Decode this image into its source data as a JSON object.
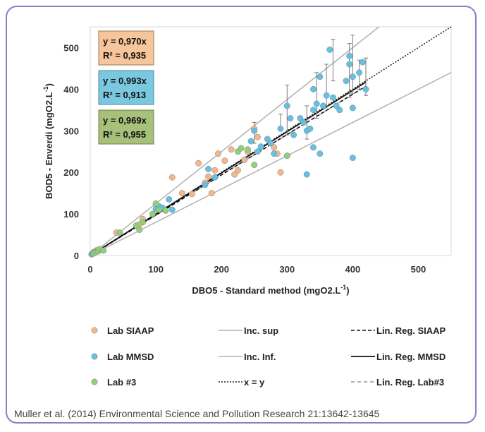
{
  "chart_data": {
    "type": "scatter",
    "xlabel": "DBO5 - Standard method (mgO2.L",
    "xlabel_sup": "-1",
    "xlabel_end": ")",
    "ylabel": "BOD5 - Enverdi (mgO2.L",
    "ylabel_sup": "-1",
    "ylabel_end": ")",
    "xlim": [
      0,
      550
    ],
    "ylim": [
      0,
      550
    ],
    "xticks": [
      "0",
      "100",
      "200",
      "300",
      "400",
      "500"
    ],
    "yticks": [
      "0",
      "100",
      "200",
      "300",
      "400",
      "500"
    ],
    "grid": false,
    "series": [
      {
        "name": "Lab SIAAP",
        "color": "#f3b78a",
        "points": [
          [
            3,
            4
          ],
          [
            6,
            8
          ],
          [
            9,
            12
          ],
          [
            12,
            14
          ],
          [
            40,
            55
          ],
          [
            75,
            75
          ],
          [
            80,
            88
          ],
          [
            105,
            118
          ],
          [
            125,
            188
          ],
          [
            140,
            150
          ],
          [
            155,
            148
          ],
          [
            165,
            222
          ],
          [
            175,
            175
          ],
          [
            180,
            190
          ],
          [
            185,
            150
          ],
          [
            190,
            205
          ],
          [
            195,
            245
          ],
          [
            205,
            228
          ],
          [
            215,
            255
          ],
          [
            220,
            195
          ],
          [
            225,
            205
          ],
          [
            235,
            230
          ],
          [
            240,
            250
          ],
          [
            250,
            305
          ],
          [
            255,
            285
          ],
          [
            280,
            260
          ],
          [
            285,
            245
          ],
          [
            290,
            200
          ]
        ]
      },
      {
        "name": "Lab MMSD",
        "color": "#63c2e3",
        "points": [
          [
            2,
            3
          ],
          [
            4,
            5
          ],
          [
            5,
            8
          ],
          [
            100,
            112
          ],
          [
            105,
            118
          ],
          [
            110,
            115
          ],
          [
            120,
            135
          ],
          [
            125,
            110
          ],
          [
            175,
            170
          ],
          [
            180,
            208
          ],
          [
            190,
            188
          ],
          [
            245,
            275
          ],
          [
            250,
            300
          ],
          [
            255,
            250
          ],
          [
            260,
            262
          ],
          [
            270,
            280
          ],
          [
            275,
            270
          ],
          [
            280,
            245
          ],
          [
            290,
            305
          ],
          [
            300,
            360
          ],
          [
            305,
            330
          ],
          [
            310,
            290
          ],
          [
            320,
            330
          ],
          [
            325,
            320
          ],
          [
            330,
            195
          ],
          [
            330,
            300
          ],
          [
            335,
            305
          ],
          [
            340,
            400
          ],
          [
            340,
            350
          ],
          [
            340,
            260
          ],
          [
            345,
            365
          ],
          [
            350,
            430
          ],
          [
            350,
            245
          ],
          [
            355,
            360
          ],
          [
            360,
            385
          ],
          [
            365,
            495
          ],
          [
            370,
            380
          ],
          [
            375,
            360
          ],
          [
            380,
            350
          ],
          [
            390,
            420
          ],
          [
            395,
            480
          ],
          [
            395,
            460
          ],
          [
            400,
            430
          ],
          [
            400,
            355
          ],
          [
            400,
            235
          ],
          [
            410,
            440
          ],
          [
            415,
            465
          ],
          [
            420,
            400
          ]
        ]
      },
      {
        "name": "Lab #3",
        "color": "#8fd07a",
        "points": [
          [
            5,
            5
          ],
          [
            8,
            8
          ],
          [
            12,
            10
          ],
          [
            15,
            15
          ],
          [
            20,
            12
          ],
          [
            45,
            55
          ],
          [
            70,
            72
          ],
          [
            75,
            62
          ],
          [
            80,
            80
          ],
          [
            95,
            100
          ],
          [
            100,
            125
          ],
          [
            105,
            110
          ],
          [
            115,
            108
          ],
          [
            225,
            250
          ],
          [
            230,
            258
          ],
          [
            240,
            255
          ],
          [
            250,
            218
          ],
          [
            300,
            240
          ]
        ]
      }
    ],
    "error_bars": [
      {
        "x": 400,
        "low": 390,
        "high": 530
      },
      {
        "x": 395,
        "low": 380,
        "high": 510
      },
      {
        "x": 370,
        "low": 420,
        "high": 520
      },
      {
        "x": 360,
        "low": 360,
        "high": 460
      },
      {
        "x": 345,
        "low": 330,
        "high": 440
      },
      {
        "x": 300,
        "low": 290,
        "high": 410
      },
      {
        "x": 290,
        "low": 300,
        "high": 340
      },
      {
        "x": 250,
        "low": 270,
        "high": 320
      },
      {
        "x": 420,
        "low": 385,
        "high": 475
      },
      {
        "x": 410,
        "low": 400,
        "high": 470
      },
      {
        "x": 330,
        "low": 280,
        "high": 360
      }
    ],
    "lines": {
      "x_eq_y": {
        "slope": 1.0,
        "x_end": 550
      },
      "inc_sup": {
        "slope": 1.25,
        "x_end": 440
      },
      "inc_inf": {
        "slope": 0.8,
        "x_end": 550
      },
      "reg_siaap": {
        "slope": 0.97,
        "x_end": 420
      },
      "reg_mmsd": {
        "slope": 0.993,
        "x_end": 420
      },
      "reg_lab3": {
        "slope": 0.969,
        "x_end": 420
      }
    },
    "annotations": [
      {
        "line1": "y = 0,970x",
        "line2": "R² = 0,935",
        "bg": "#f7c59b",
        "border": "#a07850"
      },
      {
        "line1": "y = 0,993x",
        "line2": "R² = 0,913",
        "bg": "#7ac8e0",
        "border": "#4a8aa0"
      },
      {
        "line1": "y = 0,969x",
        "line2": "R² = 0,955",
        "bg": "#a7c07a",
        "border": "#6c8048"
      }
    ],
    "legend": {
      "placement": "bottom",
      "items": [
        {
          "label": "Lab SIAAP",
          "kind": "marker",
          "color": "#f3b78a"
        },
        {
          "label": "Inc. sup",
          "kind": "line",
          "style": "solid-gray"
        },
        {
          "label": "Lin. Reg. SIAAP",
          "kind": "line",
          "style": "dashed-black"
        },
        {
          "label": "Lab MMSD",
          "kind": "marker",
          "color": "#63c2e3"
        },
        {
          "label": "Inc. Inf.",
          "kind": "line",
          "style": "solid-gray"
        },
        {
          "label": "Lin. Reg. MMSD",
          "kind": "line",
          "style": "solid-black"
        },
        {
          "label": "Lab #3",
          "kind": "marker",
          "color": "#8fd07a"
        },
        {
          "label": "x = y",
          "kind": "line",
          "style": "dotted-black"
        },
        {
          "label": "Lin. Reg. Lab#3",
          "kind": "line",
          "style": "dashed-gray"
        }
      ]
    }
  },
  "caption": "Muller et al. (2014) Environmental Science and Pollution Research 21:13642-13645"
}
